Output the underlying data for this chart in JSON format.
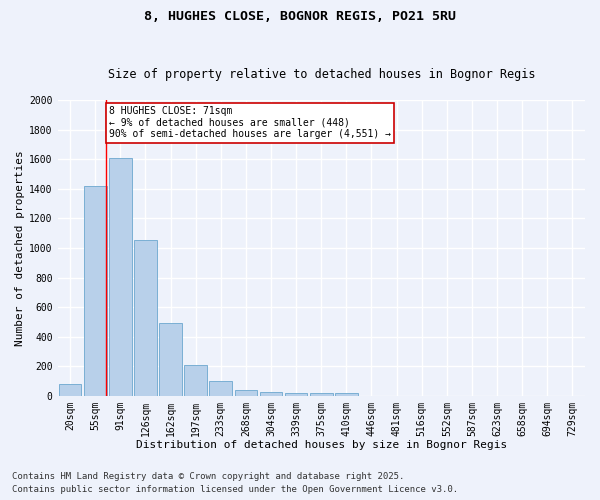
{
  "title1": "8, HUGHES CLOSE, BOGNOR REGIS, PO21 5RU",
  "title2": "Size of property relative to detached houses in Bognor Regis",
  "xlabel": "Distribution of detached houses by size in Bognor Regis",
  "ylabel": "Number of detached properties",
  "categories": [
    "20sqm",
    "55sqm",
    "91sqm",
    "126sqm",
    "162sqm",
    "197sqm",
    "233sqm",
    "268sqm",
    "304sqm",
    "339sqm",
    "375sqm",
    "410sqm",
    "446sqm",
    "481sqm",
    "516sqm",
    "552sqm",
    "587sqm",
    "623sqm",
    "658sqm",
    "694sqm",
    "729sqm"
  ],
  "values": [
    80,
    1420,
    1610,
    1055,
    495,
    205,
    100,
    38,
    28,
    18,
    18,
    18,
    0,
    0,
    0,
    0,
    0,
    0,
    0,
    0,
    0
  ],
  "bar_color": "#b8d0ea",
  "bar_edge_color": "#7aafd4",
  "red_line_x": 1.43,
  "annotation_text": "8 HUGHES CLOSE: 71sqm\n← 9% of detached houses are smaller (448)\n90% of semi-detached houses are larger (4,551) →",
  "annotation_box_color": "#ffffff",
  "annotation_box_edge": "#cc0000",
  "footer1": "Contains HM Land Registry data © Crown copyright and database right 2025.",
  "footer2": "Contains public sector information licensed under the Open Government Licence v3.0.",
  "ylim": [
    0,
    2000
  ],
  "yticks": [
    0,
    200,
    400,
    600,
    800,
    1000,
    1200,
    1400,
    1600,
    1800,
    2000
  ],
  "background_color": "#eef2fb",
  "grid_color": "#ffffff",
  "title_fontsize": 9.5,
  "subtitle_fontsize": 8.5,
  "axis_label_fontsize": 8,
  "tick_fontsize": 7,
  "annotation_fontsize": 7,
  "footer_fontsize": 6.5
}
